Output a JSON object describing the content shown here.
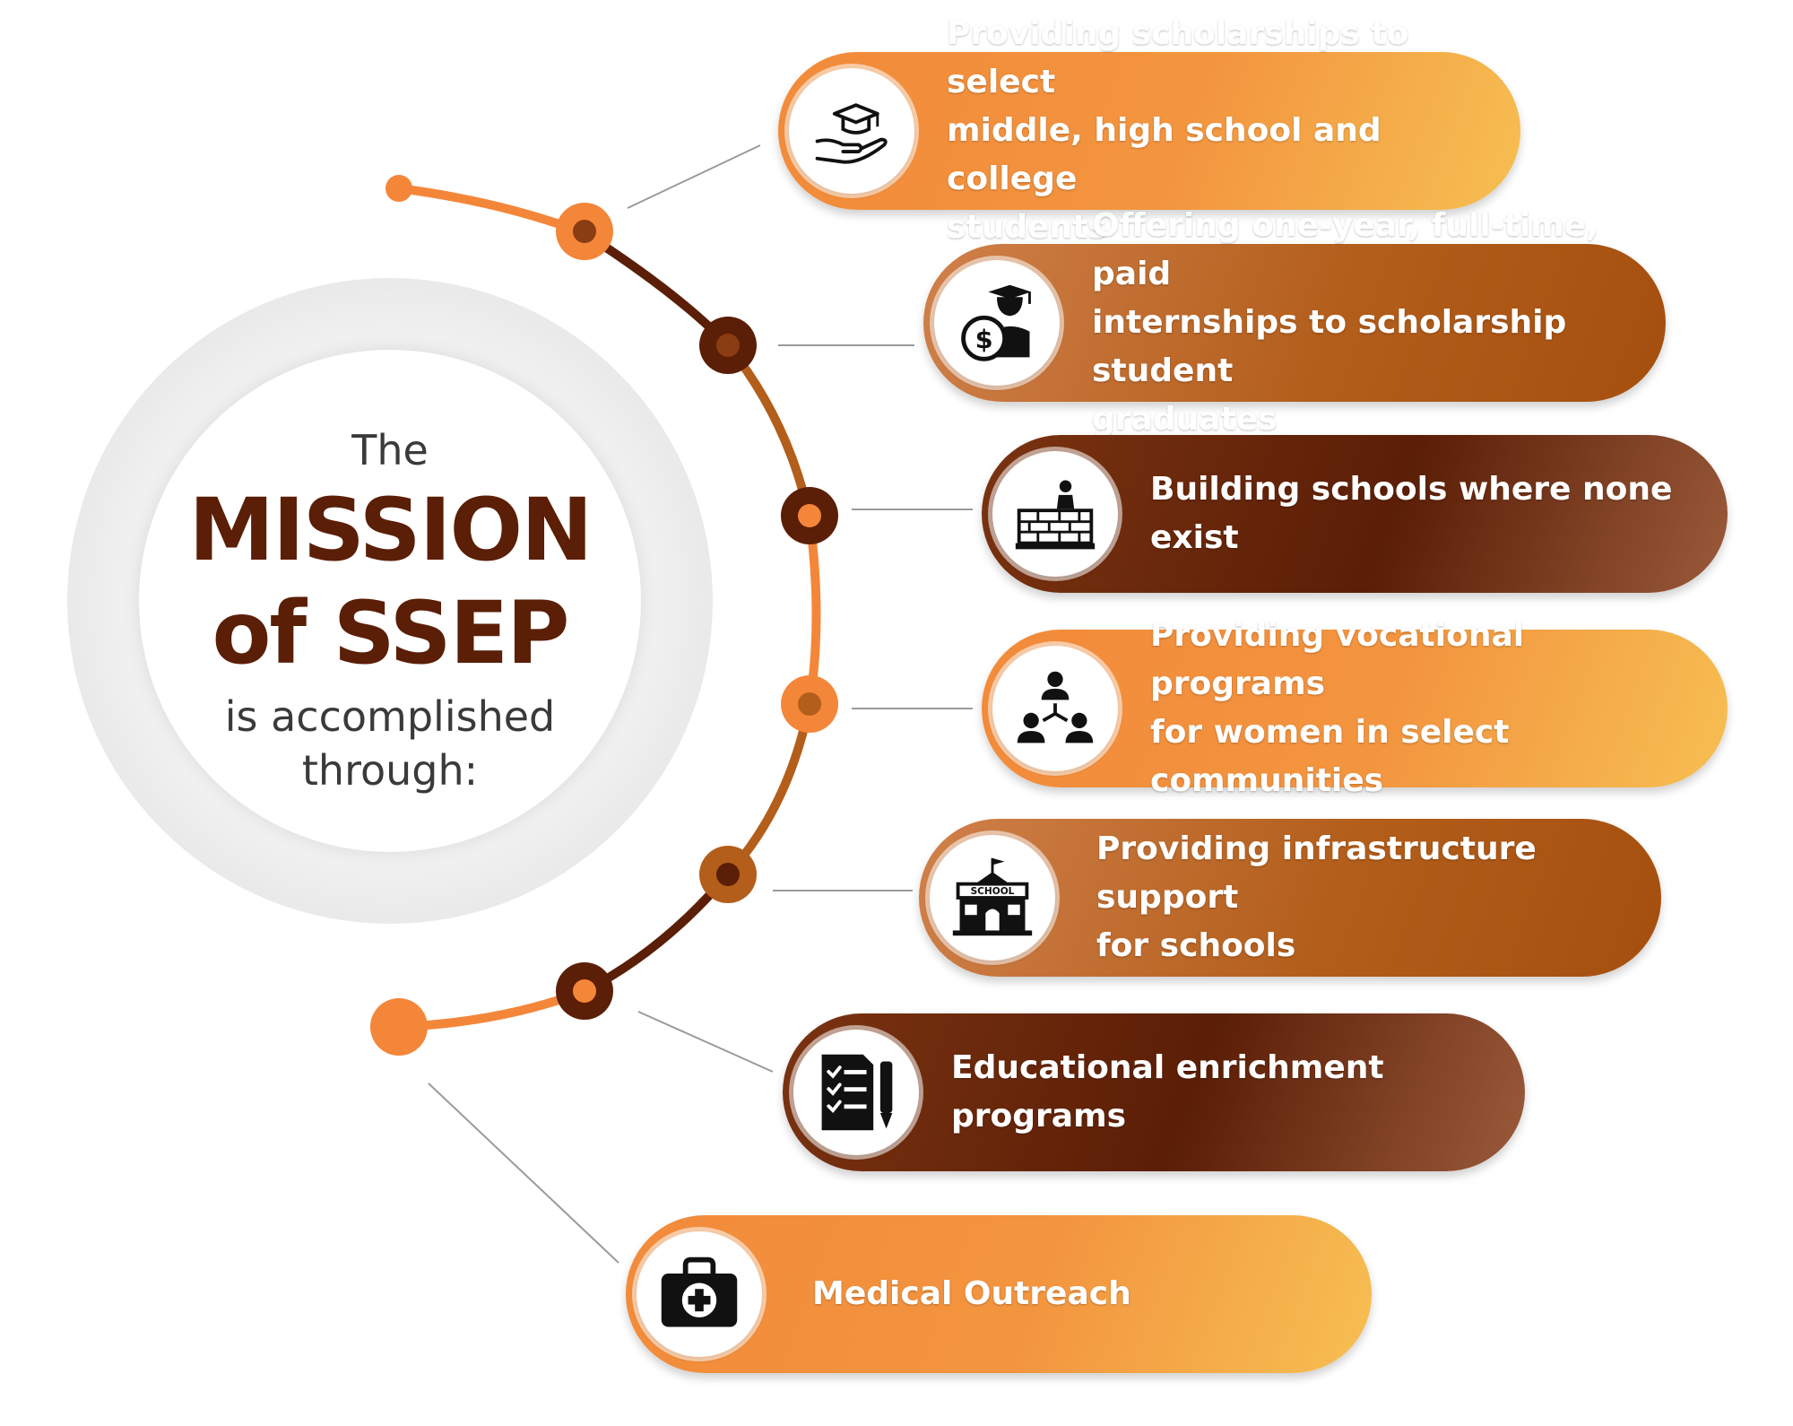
{
  "center": {
    "line1": "The",
    "line2": "MISSION",
    "line3": "of SSEP",
    "line4": "is accomplished",
    "line5": "through:"
  },
  "colors": {
    "orange": "#f28a3a",
    "rust": "#b35e1b",
    "dark_brown": "#5b1e06",
    "arc_orange": "#f4863a",
    "arc_dark": "#5b1e06"
  },
  "items": [
    {
      "icon": "graduation-cap-hand-icon",
      "text": "Providing scholarships to select\nmiddle, high school and college\nstudents"
    },
    {
      "icon": "graduate-dollar-icon",
      "text": "Offering one-year, full-time, paid\ninternships to scholarship student\ngraduates"
    },
    {
      "icon": "brick-wall-builder-icon",
      "text": "Building schools where none exist"
    },
    {
      "icon": "people-network-icon",
      "text": "Providing vocational programs\nfor women in select communities"
    },
    {
      "icon": "school-building-icon",
      "text": "Providing infrastructure support\nfor schools"
    },
    {
      "icon": "checklist-pencil-icon",
      "text": "Educational enrichment programs"
    },
    {
      "icon": "medical-kit-icon",
      "text": "Medical Outreach"
    }
  ]
}
